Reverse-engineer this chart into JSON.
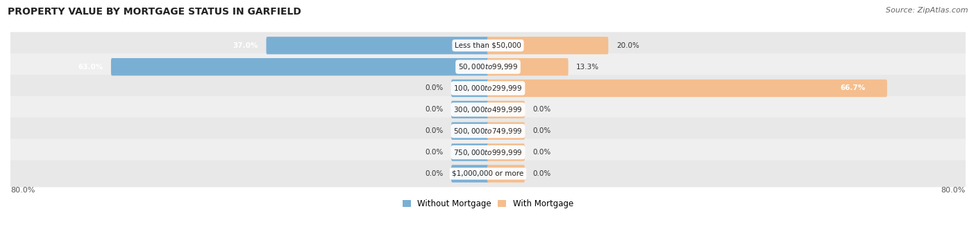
{
  "title": "PROPERTY VALUE BY MORTGAGE STATUS IN GARFIELD",
  "source": "Source: ZipAtlas.com",
  "categories": [
    "Less than $50,000",
    "$50,000 to $99,999",
    "$100,000 to $299,999",
    "$300,000 to $499,999",
    "$500,000 to $749,999",
    "$750,000 to $999,999",
    "$1,000,000 or more"
  ],
  "without_mortgage": [
    37.0,
    63.0,
    0.0,
    0.0,
    0.0,
    0.0,
    0.0
  ],
  "with_mortgage": [
    20.0,
    13.3,
    66.7,
    0.0,
    0.0,
    0.0,
    0.0
  ],
  "without_mortgage_color": "#7aafd4",
  "with_mortgage_color": "#f5be8e",
  "row_bg_even": "#e8e8e8",
  "row_bg_odd": "#efefef",
  "axis_limit": 80.0,
  "legend_label_without": "Without Mortgage",
  "legend_label_with": "With Mortgage",
  "title_fontsize": 10,
  "source_fontsize": 8,
  "bar_height": 0.52,
  "stub_size": 6.0,
  "figsize": [
    14.06,
    3.41
  ]
}
